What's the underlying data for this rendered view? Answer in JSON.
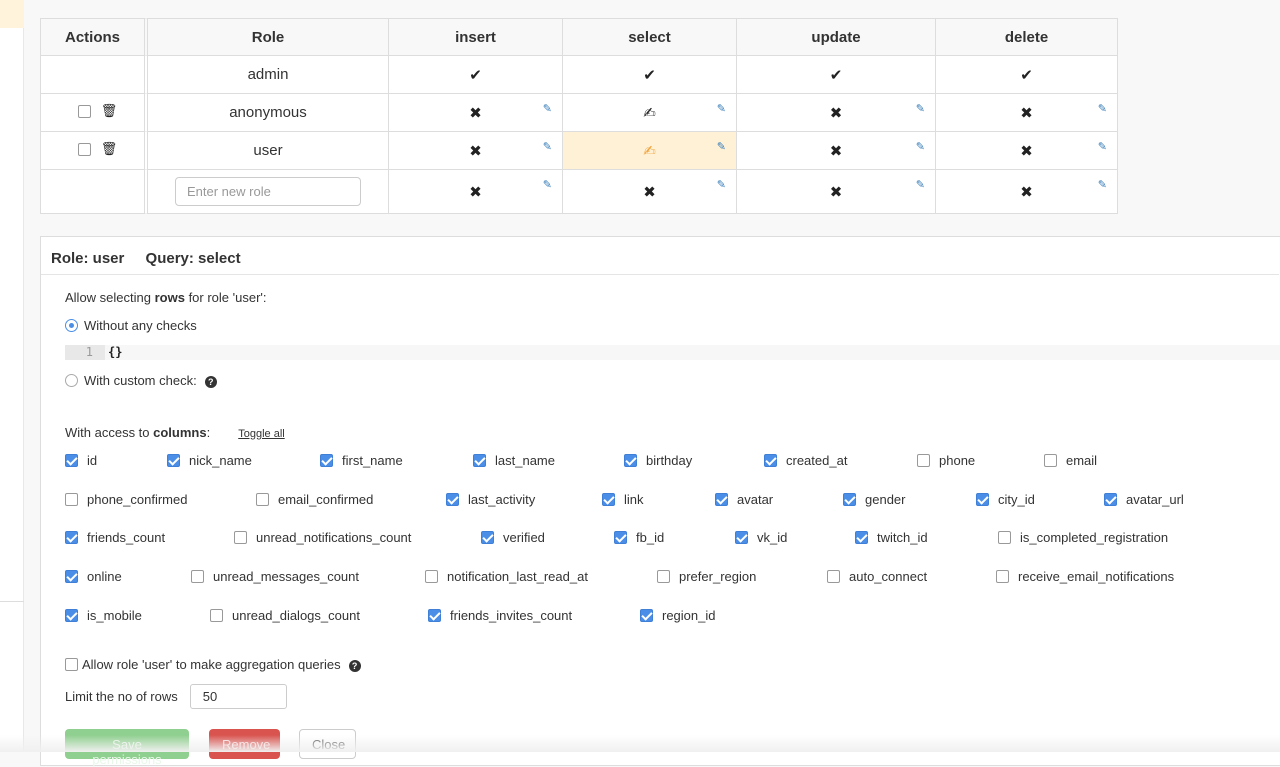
{
  "table": {
    "headers": [
      "Actions",
      "Role",
      "insert",
      "select",
      "update",
      "delete"
    ],
    "rows": [
      {
        "role": "admin",
        "insert": "check",
        "select": "check",
        "update": "check",
        "delete": "check",
        "selectable": false
      },
      {
        "role": "anonymous",
        "insert": "cross",
        "select": "partial-edit",
        "update": "cross",
        "delete": "cross",
        "selectable": true
      },
      {
        "role": "user",
        "insert": "cross",
        "select": "partial-edit-active",
        "update": "cross",
        "delete": "cross",
        "selectable": true
      }
    ],
    "new_role_placeholder": "Enter new role"
  },
  "panel": {
    "role_label": "Role: user",
    "query_label": "Query: select",
    "rows_text_pre": "Allow selecting ",
    "rows_text_bold": "rows",
    "rows_text_post": " for role 'user':",
    "option_no_checks": "Without any checks",
    "code_line_number": "1",
    "code_text": "{}",
    "option_custom_check": "With custom check:",
    "columns_text_pre": "With access to ",
    "columns_text_bold": "columns",
    "columns_text_post": ":",
    "toggle_all": "Toggle all",
    "columns": [
      {
        "name": "id",
        "checked": true
      },
      {
        "name": "nick_name",
        "checked": true
      },
      {
        "name": "first_name",
        "checked": true
      },
      {
        "name": "last_name",
        "checked": true
      },
      {
        "name": "birthday",
        "checked": true
      },
      {
        "name": "created_at",
        "checked": true
      },
      {
        "name": "phone",
        "checked": false
      },
      {
        "name": "email",
        "checked": false
      },
      {
        "name": "phone_confirmed",
        "checked": false
      },
      {
        "name": "email_confirmed",
        "checked": false
      },
      {
        "name": "last_activity",
        "checked": true
      },
      {
        "name": "link",
        "checked": true
      },
      {
        "name": "avatar",
        "checked": true
      },
      {
        "name": "gender",
        "checked": true
      },
      {
        "name": "city_id",
        "checked": true
      },
      {
        "name": "avatar_url",
        "checked": true
      },
      {
        "name": "friends_count",
        "checked": true
      },
      {
        "name": "unread_notifications_count",
        "checked": false
      },
      {
        "name": "verified",
        "checked": true
      },
      {
        "name": "fb_id",
        "checked": true
      },
      {
        "name": "vk_id",
        "checked": true
      },
      {
        "name": "twitch_id",
        "checked": true
      },
      {
        "name": "is_completed_registration",
        "checked": false
      },
      {
        "name": "online",
        "checked": true
      },
      {
        "name": "unread_messages_count",
        "checked": false
      },
      {
        "name": "notification_last_read_at",
        "checked": false
      },
      {
        "name": "prefer_region",
        "checked": false
      },
      {
        "name": "auto_connect",
        "checked": false
      },
      {
        "name": "receive_email_notifications",
        "checked": false
      },
      {
        "name": "is_mobile",
        "checked": true
      },
      {
        "name": "unread_dialogs_count",
        "checked": false
      },
      {
        "name": "friends_invites_count",
        "checked": true
      },
      {
        "name": "region_id",
        "checked": true
      }
    ],
    "aggregation_label": "Allow role 'user' to make aggregation queries",
    "limit_label": "Limit the no of rows",
    "limit_value": "50",
    "buttons": {
      "save": "Save permissions",
      "remove": "Remove",
      "close": "Close"
    }
  }
}
